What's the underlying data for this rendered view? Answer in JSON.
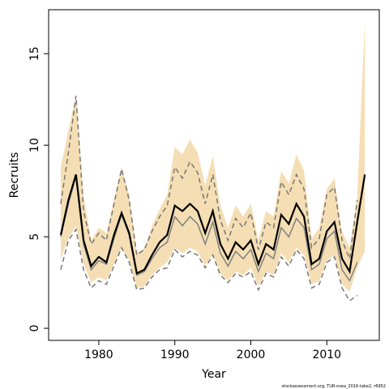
{
  "chart_data": {
    "type": "line",
    "xlabel": "Year",
    "ylabel": "Recruits",
    "footnote": "stockassessment.org, TUR-nsea_2016-take2, r6952",
    "x": [
      1975,
      1976,
      1977,
      1978,
      1979,
      1980,
      1981,
      1982,
      1983,
      1984,
      1985,
      1986,
      1987,
      1988,
      1989,
      1990,
      1991,
      1992,
      1993,
      1994,
      1995,
      1996,
      1997,
      1998,
      1999,
      2000,
      2001,
      2002,
      2003,
      2004,
      2005,
      2006,
      2007,
      2008,
      2009,
      2010,
      2011,
      2012,
      2013,
      2014,
      2015
    ],
    "band": {
      "color": "#f5deb3",
      "upper": [
        8.8,
        10.8,
        12.7,
        7.2,
        4.8,
        5.5,
        5.2,
        7.0,
        8.8,
        7.3,
        4.1,
        4.4,
        5.6,
        6.5,
        7.3,
        9.9,
        9.5,
        10.3,
        9.6,
        7.8,
        9.4,
        6.7,
        5.5,
        6.7,
        6.1,
        6.8,
        4.8,
        6.4,
        6.1,
        8.6,
        7.9,
        9.5,
        8.6,
        4.9,
        5.5,
        7.6,
        8.2,
        5.3,
        4.4,
        7.2,
        16.8
      ],
      "lower": [
        3.8,
        4.9,
        5.6,
        3.5,
        2.5,
        2.8,
        2.6,
        3.5,
        4.4,
        3.7,
        2.2,
        2.3,
        2.9,
        3.3,
        3.6,
        4.4,
        4.1,
        4.4,
        4.2,
        3.4,
        4.1,
        3.0,
        2.6,
        3.1,
        2.9,
        3.3,
        2.3,
        3.1,
        2.9,
        4.1,
        3.6,
        4.4,
        4.0,
        2.4,
        2.6,
        3.7,
        4.0,
        2.4,
        2.0,
        3.3,
        4.2
      ]
    },
    "series": [
      {
        "color": "#777777",
        "style": "dashed",
        "width": 1.5,
        "values": [
          6.8,
          9.6,
          12.7,
          6.4,
          4.6,
          5.2,
          4.8,
          6.8,
          8.7,
          7.0,
          4.0,
          4.3,
          5.3,
          6.1,
          6.7,
          8.8,
          8.2,
          9.1,
          8.5,
          6.8,
          8.4,
          5.9,
          4.8,
          6.0,
          5.5,
          6.3,
          4.3,
          5.8,
          5.5,
          8.0,
          7.3,
          8.4,
          7.6,
          4.4,
          4.9,
          7.3,
          7.7,
          4.8,
          3.8,
          7.0,
          null
        ]
      },
      {
        "color": "#777777",
        "style": "dashed",
        "width": 1.5,
        "values": [
          3.2,
          4.8,
          5.4,
          3.2,
          2.2,
          2.6,
          2.4,
          3.4,
          4.4,
          3.6,
          2.1,
          2.2,
          2.8,
          3.2,
          3.3,
          4.3,
          3.9,
          4.2,
          4.0,
          3.3,
          4.0,
          2.9,
          2.5,
          3.0,
          2.8,
          3.1,
          2.1,
          3.0,
          2.8,
          3.9,
          3.4,
          4.3,
          3.8,
          2.2,
          2.4,
          3.6,
          3.9,
          2.2,
          1.5,
          1.8,
          null
        ]
      },
      {
        "color": "#808080",
        "style": "solid",
        "width": 1.5,
        "values": [
          5.0,
          6.8,
          8.3,
          4.6,
          3.2,
          3.7,
          3.5,
          4.9,
          6.2,
          5.1,
          2.9,
          3.1,
          3.8,
          4.4,
          4.7,
          6.1,
          5.6,
          6.1,
          5.7,
          4.6,
          5.8,
          4.1,
          3.4,
          4.2,
          3.8,
          4.3,
          3.1,
          4.1,
          3.8,
          5.5,
          5.0,
          6.0,
          5.5,
          3.2,
          3.5,
          4.9,
          5.3,
          3.2,
          2.6,
          3.6,
          null
        ]
      },
      {
        "color": "#000000",
        "style": "solid",
        "width": 2.2,
        "values": [
          5.1,
          7.0,
          8.4,
          4.8,
          3.4,
          3.9,
          3.6,
          5.1,
          6.3,
          5.2,
          3.0,
          3.2,
          4.0,
          4.7,
          5.1,
          6.7,
          6.4,
          6.8,
          6.4,
          5.2,
          6.4,
          4.6,
          3.8,
          4.7,
          4.3,
          4.8,
          3.5,
          4.6,
          4.3,
          6.2,
          5.7,
          6.8,
          6.1,
          3.5,
          3.8,
          5.3,
          5.8,
          3.8,
          3.1,
          5.8,
          8.4
        ]
      }
    ],
    "xlim": [
      1973.4,
      2016.9
    ],
    "ylim": [
      -0.66,
      17.4
    ],
    "xticks": [
      1980,
      1990,
      2000,
      2010
    ],
    "yticks": [
      0,
      5,
      10,
      15
    ]
  }
}
